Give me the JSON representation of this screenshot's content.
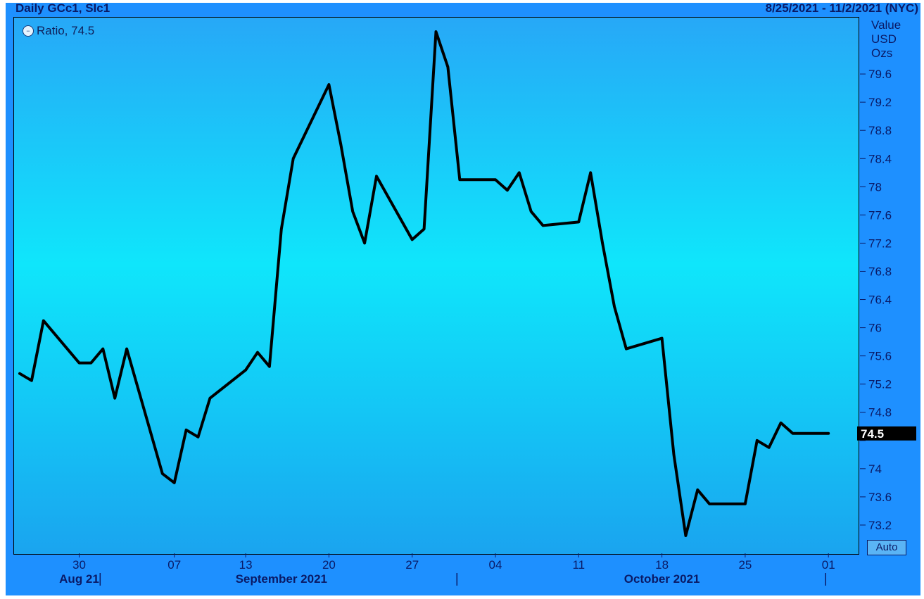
{
  "header": {
    "title": "Daily GCc1, SIc1",
    "range": "8/25/2021 - 11/2/2021 (NYC)"
  },
  "legend": {
    "label": "Ratio, 74.5"
  },
  "y_axis_unit": [
    "Value",
    "USD",
    "Ozs"
  ],
  "auto_button": "Auto",
  "last_value_label": "74.5",
  "colors": {
    "background": "#1e90ff",
    "line": "#000000",
    "text": "#0a1a66",
    "last_value_bg": "#000000"
  },
  "chart_data": {
    "type": "line",
    "title": "Daily GCc1, SIc1",
    "series": [
      {
        "name": "Ratio",
        "x": [
          "2021-08-25",
          "2021-08-26",
          "2021-08-27",
          "2021-08-30",
          "2021-08-31",
          "2021-09-01",
          "2021-09-02",
          "2021-09-03",
          "2021-09-06",
          "2021-09-07",
          "2021-09-08",
          "2021-09-09",
          "2021-09-10",
          "2021-09-13",
          "2021-09-14",
          "2021-09-15",
          "2021-09-16",
          "2021-09-17",
          "2021-09-20",
          "2021-09-21",
          "2021-09-22",
          "2021-09-23",
          "2021-09-24",
          "2021-09-27",
          "2021-09-28",
          "2021-09-29",
          "2021-09-30",
          "2021-10-01",
          "2021-10-04",
          "2021-10-05",
          "2021-10-06",
          "2021-10-07",
          "2021-10-08",
          "2021-10-11",
          "2021-10-12",
          "2021-10-13",
          "2021-10-14",
          "2021-10-15",
          "2021-10-18",
          "2021-10-19",
          "2021-10-20",
          "2021-10-21",
          "2021-10-22",
          "2021-10-25",
          "2021-10-26",
          "2021-10-27",
          "2021-10-28",
          "2021-10-29",
          "2021-11-01"
        ],
        "values": [
          75.35,
          75.25,
          76.1,
          75.5,
          75.5,
          75.7,
          75.0,
          75.7,
          73.93,
          73.8,
          74.55,
          74.45,
          75.0,
          75.4,
          75.65,
          75.45,
          77.4,
          78.4,
          79.45,
          78.6,
          77.65,
          77.2,
          78.15,
          77.25,
          77.4,
          80.2,
          79.7,
          78.1,
          78.1,
          77.95,
          78.2,
          77.65,
          77.45,
          77.5,
          78.2,
          77.2,
          76.3,
          75.7,
          75.85,
          74.2,
          73.05,
          73.7,
          73.5,
          73.5,
          74.4,
          74.3,
          74.65,
          74.5,
          74.5
        ]
      }
    ],
    "ylim": [
      72.8,
      80.4
    ],
    "yticks": [
      73.2,
      73.6,
      74,
      74.4,
      74.8,
      75.2,
      75.6,
      76,
      76.4,
      76.8,
      77.2,
      77.6,
      78,
      78.4,
      78.8,
      79.2,
      79.6
    ],
    "ytick_labels": [
      "73.2",
      "73.6",
      "74",
      "",
      "74.8",
      "75.2",
      "75.6",
      "76",
      "76.4",
      "76.8",
      "77.2",
      "77.6",
      "78",
      "78.4",
      "78.8",
      "79.2",
      "79.6"
    ],
    "xtick_labels": [
      {
        "date": "2021-08-30",
        "label": "30"
      },
      {
        "date": "2021-09-07",
        "label": "07"
      },
      {
        "date": "2021-09-13",
        "label": "13"
      },
      {
        "date": "2021-09-20",
        "label": "20"
      },
      {
        "date": "2021-09-27",
        "label": "27"
      },
      {
        "date": "2021-10-04",
        "label": "04"
      },
      {
        "date": "2021-10-11",
        "label": "11"
      },
      {
        "date": "2021-10-18",
        "label": "18"
      },
      {
        "date": "2021-10-25",
        "label": "25"
      },
      {
        "date": "2021-11-01",
        "label": "01"
      }
    ],
    "month_labels": [
      {
        "date": "2021-08-30",
        "label": "Aug 21"
      },
      {
        "date": "2021-09-16",
        "label": "September 2021"
      },
      {
        "date": "2021-10-18",
        "label": "October 2021"
      }
    ],
    "month_separators": [
      "2021-09-01",
      "2021-10-01",
      "2021-11-01"
    ],
    "grid": false,
    "legend_position": "top-left"
  }
}
